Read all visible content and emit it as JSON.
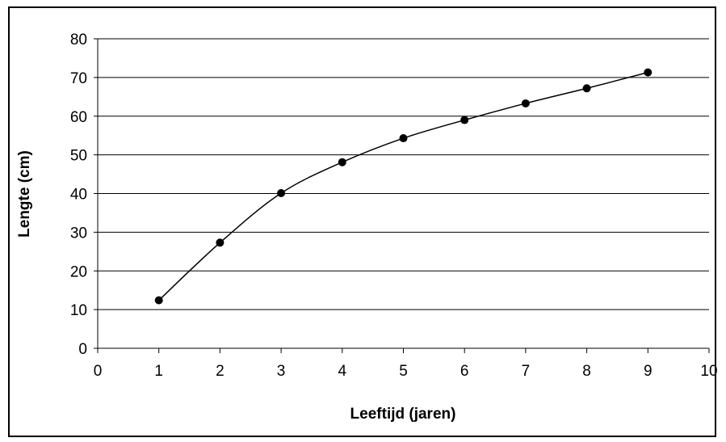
{
  "chart_data": {
    "type": "line",
    "title": "",
    "xlabel": "Leeftijd (jaren)",
    "ylabel": "Lengte (cm)",
    "xlim": [
      0,
      10
    ],
    "ylim": [
      0,
      80
    ],
    "x_ticks": [
      0,
      1,
      2,
      3,
      4,
      5,
      6,
      7,
      8,
      9,
      10
    ],
    "y_ticks": [
      0,
      10,
      20,
      30,
      40,
      50,
      60,
      70,
      80
    ],
    "grid": "horizontal",
    "legend": "none",
    "smooth": true,
    "colors": {
      "line": "#000000",
      "marker": "#000000",
      "grid": "#000000"
    },
    "series": [
      {
        "x": [
          1,
          2,
          3,
          4,
          5,
          6,
          7,
          8,
          9
        ],
        "y": [
          12.4,
          27.3,
          40.1,
          48.1,
          54.3,
          59.0,
          63.3,
          67.2,
          71.3
        ]
      }
    ]
  }
}
